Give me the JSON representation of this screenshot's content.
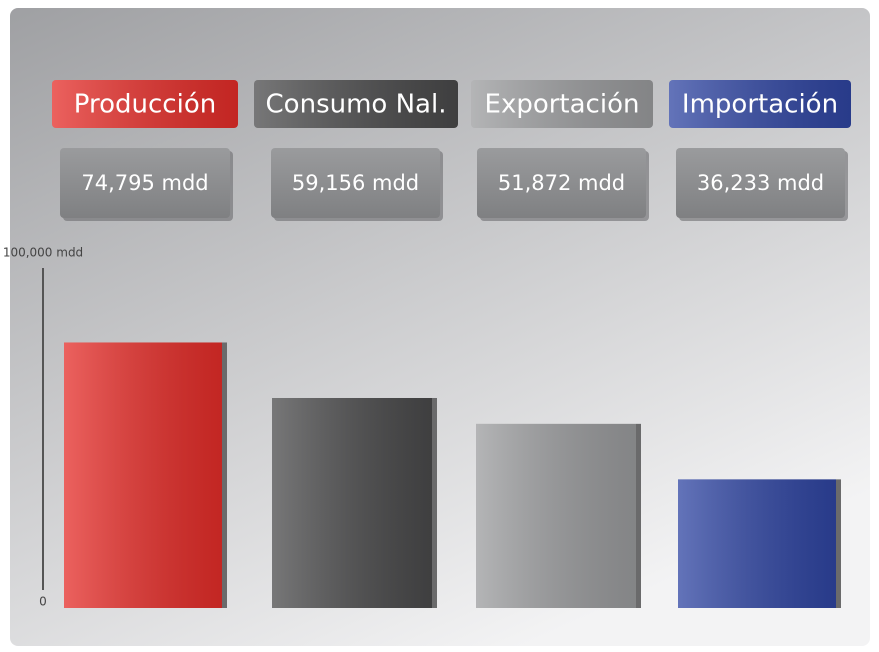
{
  "chart_data": {
    "type": "bar",
    "categories": [
      "Producción",
      "Consumo Nal.",
      "Exportación",
      "Importación"
    ],
    "values": [
      74795,
      59156,
      51872,
      36233
    ],
    "value_labels": [
      "74,795 mdd",
      "59,156 mdd",
      "51,872 mdd",
      "36,233 mdd"
    ],
    "colors": [
      "#e52d29",
      "#4a4a4b",
      "#9b9c9e",
      "#2f45a2"
    ],
    "ylim": [
      0,
      100000
    ],
    "yticks": [
      0,
      {
        "value": 100000,
        "label": "100,000 mdd"
      }
    ]
  }
}
